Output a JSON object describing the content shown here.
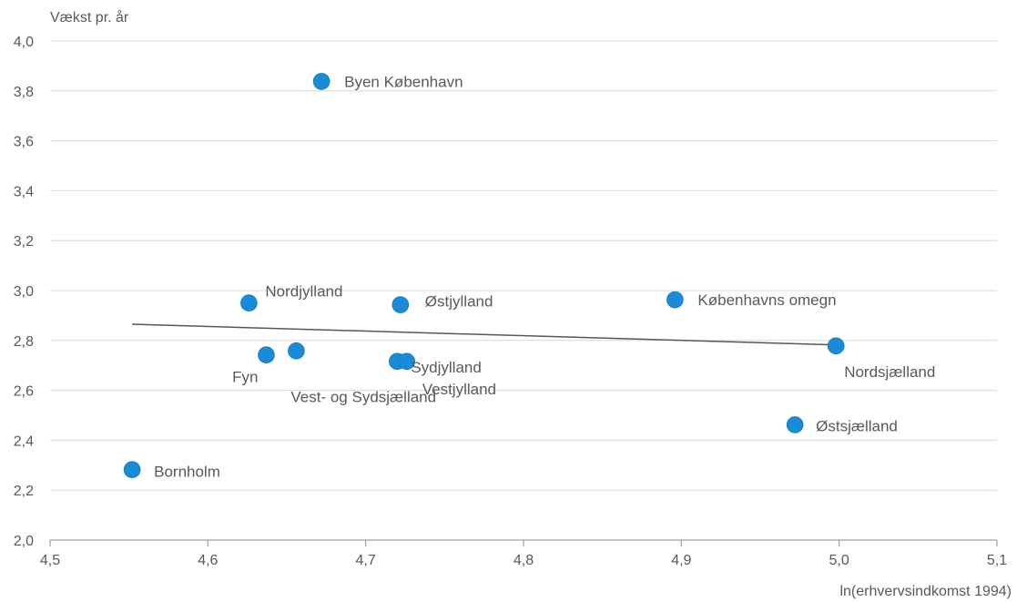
{
  "chart_data": {
    "type": "scatter",
    "title": "",
    "ylabel": "Vækst pr. år",
    "xlabel": "ln(erhvervsindkomst 1994)",
    "xlim": [
      4.5,
      5.1
    ],
    "ylim": [
      2.0,
      4.0
    ],
    "x_ticks": [
      "4,5",
      "4,6",
      "4,7",
      "4,8",
      "4,9",
      "5,0",
      "5,1"
    ],
    "y_ticks": [
      "2,0",
      "2,2",
      "2,4",
      "2,6",
      "2,8",
      "3,0",
      "3,2",
      "3,4",
      "3,6",
      "3,8",
      "4,0"
    ],
    "grid": "horizontal",
    "legend": "none",
    "marker_color": "#1a8bd6",
    "trendline_color": "#5a5a4a",
    "trendline": {
      "x": [
        4.552,
        4.998
      ],
      "y": [
        2.865,
        2.782
      ]
    },
    "points": [
      {
        "label": "Byen København",
        "x": 4.672,
        "y": 3.838
      },
      {
        "label": "Nordjylland",
        "x": 4.626,
        "y": 2.95
      },
      {
        "label": "Østjylland",
        "x": 4.722,
        "y": 2.943
      },
      {
        "label": "Københavns omegn",
        "x": 4.896,
        "y": 2.963
      },
      {
        "label": "Nordsjælland",
        "x": 4.998,
        "y": 2.778
      },
      {
        "label": "Fyn",
        "x": 4.637,
        "y": 2.742
      },
      {
        "label": "Vest- og Sydsjælland",
        "x": 4.656,
        "y": 2.758
      },
      {
        "label": "Sydjylland",
        "x": 4.72,
        "y": 2.716
      },
      {
        "label": "Vestjylland",
        "x": 4.726,
        "y": 2.716
      },
      {
        "label": "Østsjælland",
        "x": 4.972,
        "y": 2.462
      },
      {
        "label": "Bornholm",
        "x": 4.552,
        "y": 2.282
      }
    ]
  }
}
